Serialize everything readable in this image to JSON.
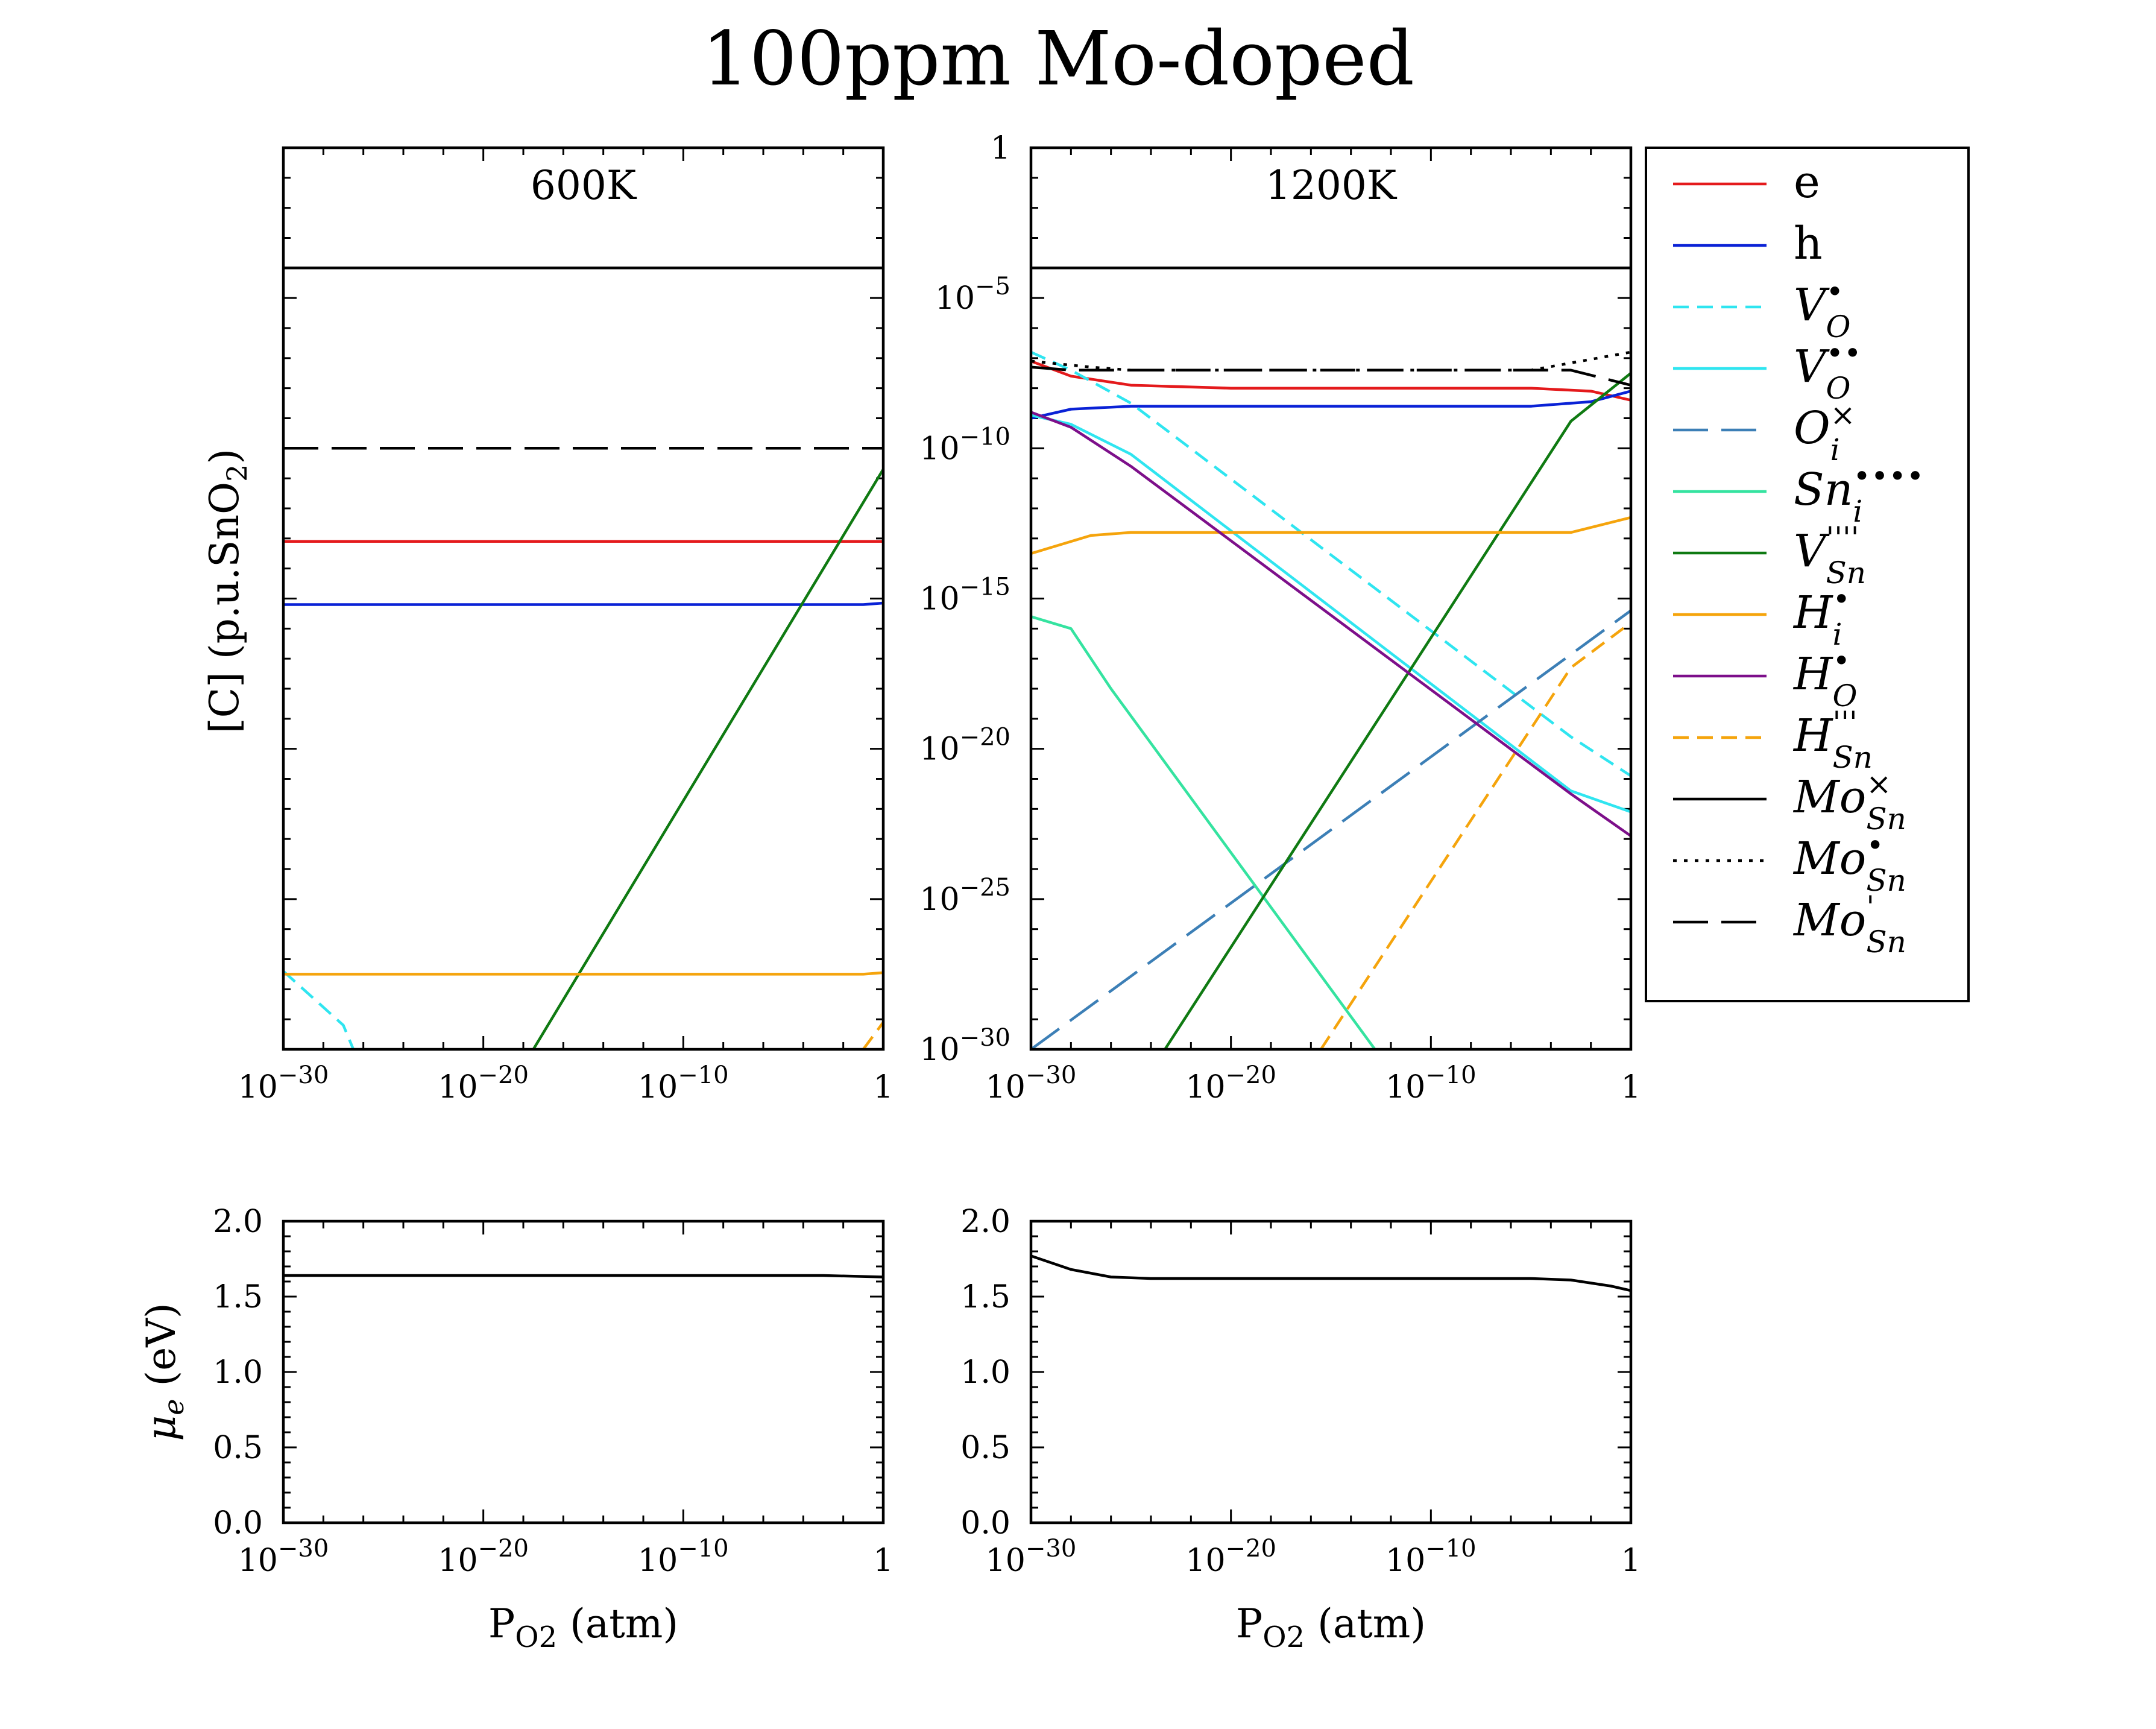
{
  "title": "100ppm Mo-doped",
  "x_label_main": "P",
  "x_label_sub": "O2",
  "x_label_unit": " (atm)",
  "y_label_top": "[C] (p.u.SnO",
  "y_label_top_sub": "2",
  "y_label_top_end": ")",
  "y_label_bottom_sym": "μ",
  "y_label_bottom_sub": "e",
  "y_label_bottom_unit": " (eV)",
  "legend": [
    {
      "key": "e",
      "base": "e",
      "sub": "",
      "sup": "",
      "italic": false,
      "color": "#e41a1c",
      "dash": "solid"
    },
    {
      "key": "h",
      "base": "h",
      "sub": "",
      "sup": "",
      "italic": false,
      "color": "#0a22d6",
      "dash": "solid"
    },
    {
      "key": "VO1",
      "base": "V",
      "sub": "O",
      "sup": "•",
      "italic": true,
      "color": "#2fe5f0",
      "dash": "dashed"
    },
    {
      "key": "VO2",
      "base": "V",
      "sub": "O",
      "sup": "••",
      "italic": true,
      "color": "#2fe5f0",
      "dash": "solid"
    },
    {
      "key": "Oi",
      "base": "O",
      "sub": "i",
      "sup": "×",
      "italic": true,
      "color": "#3c7fb6",
      "dash": "longdash"
    },
    {
      "key": "Sni",
      "base": "Sn",
      "sub": "i",
      "sup": "••••",
      "italic": true,
      "color": "#35e3a0",
      "dash": "solid"
    },
    {
      "key": "VSn",
      "base": "V",
      "sub": "Sn",
      "sup": "''''",
      "italic": true,
      "color": "#0f7a12",
      "dash": "solid"
    },
    {
      "key": "Hi",
      "base": "H",
      "sub": "i",
      "sup": "•",
      "italic": true,
      "color": "#f5a40c",
      "dash": "solid"
    },
    {
      "key": "HO",
      "base": "H",
      "sub": "O",
      "sup": "•",
      "italic": true,
      "color": "#7d0f8a",
      "dash": "solid"
    },
    {
      "key": "HSn",
      "base": "H",
      "sub": "Sn",
      "sup": "'''",
      "italic": true,
      "color": "#f5a40c",
      "dash": "dashed"
    },
    {
      "key": "MoX",
      "base": "Mo",
      "sub": "Sn",
      "sup": "×",
      "italic": true,
      "color": "#000000",
      "dash": "solid"
    },
    {
      "key": "Mo1",
      "base": "Mo",
      "sub": "Sn",
      "sup": "•",
      "italic": true,
      "color": "#000000",
      "dash": "dotted"
    },
    {
      "key": "Mom",
      "base": "Mo",
      "sub": "Sn",
      "sup": "'",
      "italic": true,
      "color": "#000000",
      "dash": "longdash"
    }
  ],
  "x_ticks": [
    {
      "v": -30,
      "base": "10",
      "exp": "−30"
    },
    {
      "v": -20,
      "base": "10",
      "exp": "−20"
    },
    {
      "v": -10,
      "base": "10",
      "exp": "−10"
    },
    {
      "v": 0,
      "base": "1",
      "exp": ""
    }
  ],
  "y_ticks_conc": [
    {
      "v": 0,
      "base": "1",
      "exp": ""
    },
    {
      "v": -5,
      "base": "10",
      "exp": "−5"
    },
    {
      "v": -10,
      "base": "10",
      "exp": "−10"
    },
    {
      "v": -15,
      "base": "10",
      "exp": "−15"
    },
    {
      "v": -20,
      "base": "10",
      "exp": "−20"
    },
    {
      "v": -25,
      "base": "10",
      "exp": "−25"
    },
    {
      "v": -30,
      "base": "10",
      "exp": "−30"
    }
  ],
  "y_ticks_mu": [
    "0.0",
    "0.5",
    "1.0",
    "1.5",
    "2.0"
  ],
  "chart_data": [
    {
      "type": "line",
      "panel": "concentration",
      "title": "600K",
      "x_scale": "log",
      "y_scale": "log",
      "x_range_log10": [
        -30,
        0
      ],
      "y_range_log10": [
        -30,
        0
      ],
      "x_log10": [
        -30,
        0
      ],
      "series": [
        {
          "name": "e",
          "points": [
            [
              -30,
              -13.1
            ],
            [
              0,
              -13.1
            ]
          ]
        },
        {
          "name": "h",
          "points": [
            [
              -30,
              -15.2
            ],
            [
              -1,
              -15.2
            ],
            [
              0,
              -15.15
            ]
          ]
        },
        {
          "name": "V_O^•",
          "points": [
            [
              -30,
              -27.4
            ],
            [
              -27,
              -29.2
            ],
            [
              -26.5,
              -30
            ]
          ]
        },
        {
          "name": "V_Sn^''''",
          "points": [
            [
              -17.5,
              -30
            ],
            [
              0,
              -10.7
            ]
          ]
        },
        {
          "name": "H_i^•",
          "points": [
            [
              -30,
              -27.5
            ],
            [
              -1,
              -27.5
            ],
            [
              0,
              -27.45
            ]
          ]
        },
        {
          "name": "H_Sn^'''",
          "points": [
            [
              -1,
              -30
            ],
            [
              0,
              -29.1
            ]
          ]
        },
        {
          "name": "Mo_Sn^×",
          "points": [
            [
              -30,
              -4
            ],
            [
              0,
              -4
            ]
          ]
        },
        {
          "name": "Mo_Sn^'",
          "points": [
            [
              -30,
              -10
            ],
            [
              0,
              -10
            ]
          ]
        }
      ]
    },
    {
      "type": "line",
      "panel": "concentration",
      "title": "1200K",
      "x_scale": "log",
      "y_scale": "log",
      "x_range_log10": [
        -30,
        0
      ],
      "y_range_log10": [
        -30,
        0
      ],
      "series": [
        {
          "name": "e",
          "points": [
            [
              -30,
              -7.1
            ],
            [
              -28,
              -7.6
            ],
            [
              -25,
              -7.9
            ],
            [
              -20,
              -8.0
            ],
            [
              -5,
              -8.0
            ],
            [
              -2,
              -8.1
            ],
            [
              0,
              -8.4
            ]
          ]
        },
        {
          "name": "h",
          "points": [
            [
              -30,
              -9.0
            ],
            [
              -28,
              -8.7
            ],
            [
              -25,
              -8.6
            ],
            [
              -5,
              -8.6
            ],
            [
              -2,
              -8.45
            ],
            [
              0,
              -8.1
            ]
          ]
        },
        {
          "name": "V_O^•",
          "points": [
            [
              -30,
              -6.8
            ],
            [
              -28,
              -7.4
            ],
            [
              -25,
              -8.5
            ],
            [
              -3,
              -19.6
            ],
            [
              0,
              -20.9
            ]
          ]
        },
        {
          "name": "V_O^••",
          "points": [
            [
              -30,
              -8.9
            ],
            [
              -28,
              -9.2
            ],
            [
              -25,
              -10.2
            ],
            [
              -3,
              -21.4
            ],
            [
              0,
              -22.1
            ]
          ]
        },
        {
          "name": "O_i^×",
          "points": [
            [
              -30,
              -30
            ],
            [
              0,
              -15.4
            ]
          ]
        },
        {
          "name": "Sn_i^••••",
          "points": [
            [
              -30,
              -15.6
            ],
            [
              -28,
              -16.0
            ],
            [
              -26,
              -18
            ],
            [
              -12.8,
              -30
            ]
          ]
        },
        {
          "name": "V_Sn^''''",
          "points": [
            [
              -23.3,
              -30
            ],
            [
              -3,
              -9.1
            ],
            [
              0,
              -7.5
            ]
          ]
        },
        {
          "name": "H_i^•",
          "points": [
            [
              -30,
              -13.5
            ],
            [
              -27,
              -12.9
            ],
            [
              -25,
              -12.8
            ],
            [
              -3,
              -12.8
            ],
            [
              0,
              -12.3
            ]
          ]
        },
        {
          "name": "H_O^•",
          "points": [
            [
              -30,
              -8.8
            ],
            [
              -28,
              -9.3
            ],
            [
              -25,
              -10.6
            ],
            [
              -3,
              -21.5
            ],
            [
              0,
              -22.9
            ]
          ]
        },
        {
          "name": "H_Sn^'''",
          "points": [
            [
              -15.5,
              -30
            ],
            [
              -3,
              -17.3
            ],
            [
              0,
              -15.8
            ]
          ]
        },
        {
          "name": "Mo_Sn^×",
          "points": [
            [
              -30,
              -4
            ],
            [
              0,
              -4
            ]
          ]
        },
        {
          "name": "Mo_Sn^•",
          "points": [
            [
              -30,
              -7.1
            ],
            [
              -27,
              -7.3
            ],
            [
              -25,
              -7.4
            ],
            [
              -5,
              -7.4
            ],
            [
              0,
              -6.8
            ]
          ]
        },
        {
          "name": "Mo_Sn^'",
          "points": [
            [
              -30,
              -7.3
            ],
            [
              -28,
              -7.4
            ],
            [
              -3,
              -7.4
            ],
            [
              0,
              -7.9
            ]
          ]
        }
      ]
    },
    {
      "type": "line",
      "panel": "electron chemical potential",
      "x_scale": "log",
      "x_range_log10": [
        -30,
        0
      ],
      "ylim": [
        0,
        2
      ],
      "series": [
        {
          "name": "μe 600K",
          "points": [
            [
              -30,
              1.64
            ],
            [
              -3,
              1.64
            ],
            [
              0,
              1.63
            ]
          ]
        }
      ]
    },
    {
      "type": "line",
      "panel": "electron chemical potential",
      "x_scale": "log",
      "x_range_log10": [
        -30,
        0
      ],
      "ylim": [
        0,
        2
      ],
      "series": [
        {
          "name": "μe 1200K",
          "points": [
            [
              -30,
              1.77
            ],
            [
              -28,
              1.68
            ],
            [
              -26,
              1.63
            ],
            [
              -24,
              1.62
            ],
            [
              -5,
              1.62
            ],
            [
              -3,
              1.61
            ],
            [
              -1,
              1.57
            ],
            [
              0,
              1.54
            ]
          ]
        }
      ]
    }
  ]
}
